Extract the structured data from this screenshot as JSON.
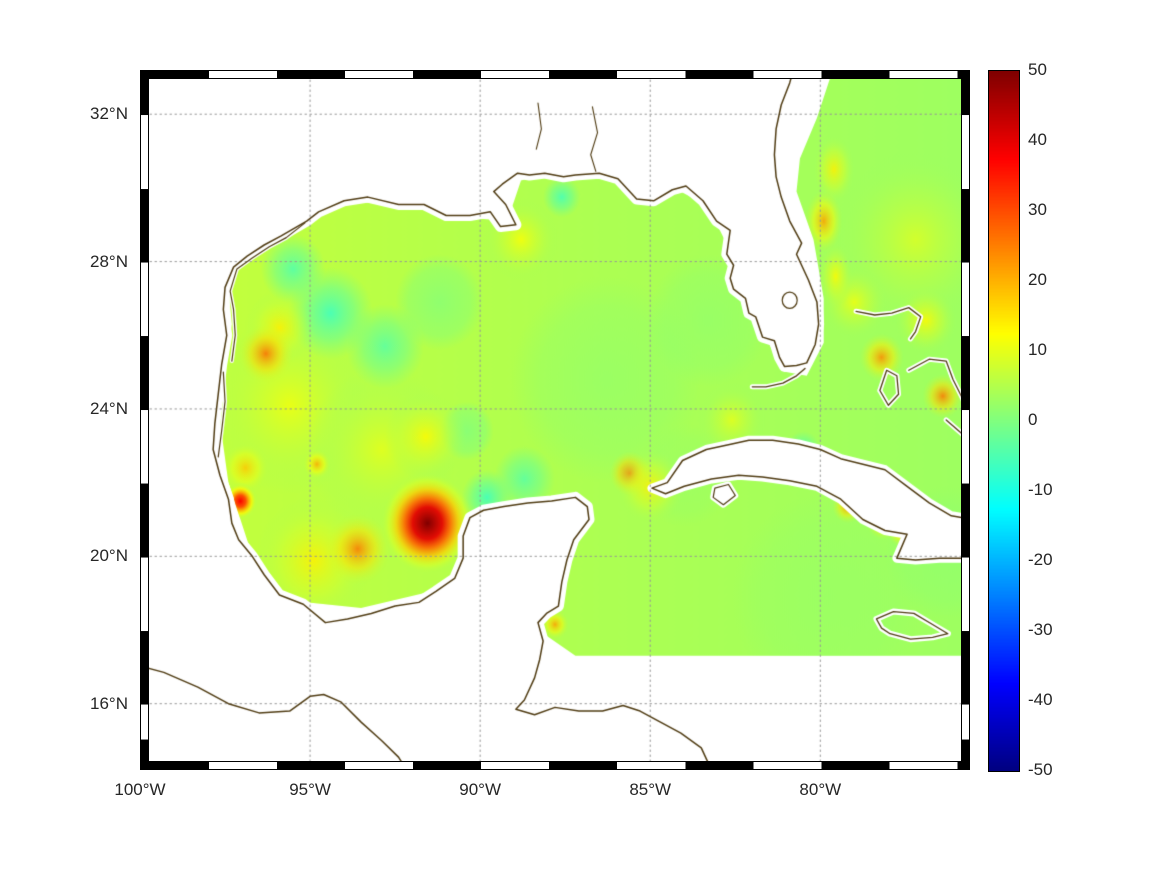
{
  "style": {
    "coastline_color": "#4f3b12",
    "land_color": "#ffffff",
    "grid_color": "#969696",
    "label_color": "#262626",
    "background": "#ffffff"
  },
  "chart_data": {
    "type": "heatmap",
    "region": "Gulf of Mexico, western Caribbean and adjacent North Atlantic",
    "projection": "equirectangular",
    "lon_range": [
      -100,
      -75.6
    ],
    "lat_range": [
      14.2,
      33.2
    ],
    "grid": "dotted",
    "x_ticks": [
      {
        "label": "100°W",
        "lon": -100
      },
      {
        "label": "95°W",
        "lon": -95
      },
      {
        "label": "90°W",
        "lon": -90
      },
      {
        "label": "85°W",
        "lon": -85
      },
      {
        "label": "80°W",
        "lon": -80
      }
    ],
    "y_ticks": [
      {
        "label": "32°N",
        "lat": 32
      },
      {
        "label": "28°N",
        "lat": 28
      },
      {
        "label": "24°N",
        "lat": 24
      },
      {
        "label": "20°N",
        "lat": 20
      },
      {
        "label": "16°N",
        "lat": 16
      }
    ],
    "colorbar": {
      "colormap": "jet",
      "min": -50,
      "max": 50,
      "position": "right",
      "ticks": [
        {
          "label": "50",
          "value": 50
        },
        {
          "label": "40",
          "value": 40
        },
        {
          "label": "30",
          "value": 30
        },
        {
          "label": "20",
          "value": 20
        },
        {
          "label": "10",
          "value": 10
        },
        {
          "label": "0",
          "value": 0
        },
        {
          "label": "-10",
          "value": -10
        },
        {
          "label": "-20",
          "value": -20
        },
        {
          "label": "-30",
          "value": -30
        },
        {
          "label": "-40",
          "value": -40
        },
        {
          "label": "-50",
          "value": -50
        }
      ]
    },
    "background_field": {
      "west_value": 7,
      "mid_value": 4.5,
      "east_value": 3
    },
    "anomalies": [
      {
        "lon": -86.3,
        "lat": 24.8,
        "r": 2.8,
        "v": 1
      },
      {
        "lon": -83.3,
        "lat": 26.4,
        "r": 1.8,
        "v": 1
      },
      {
        "lon": -79.8,
        "lat": 18.9,
        "r": 2.8,
        "v": 2
      },
      {
        "lon": -76.3,
        "lat": 20.1,
        "r": 1.8,
        "v": 1
      },
      {
        "lon": -84.0,
        "lat": 22.2,
        "r": 1.4,
        "v": 2
      },
      {
        "lon": -95.6,
        "lat": 24.1,
        "r": 2.4,
        "v": 11
      },
      {
        "lon": -92.9,
        "lat": 22.9,
        "r": 2.2,
        "v": 10
      },
      {
        "lon": -94.9,
        "lat": 19.9,
        "r": 1.7,
        "v": 14
      },
      {
        "lon": -77.2,
        "lat": 28.6,
        "r": 2.4,
        "v": 9
      },
      {
        "lon": -91.2,
        "lat": 26.9,
        "r": 1.3,
        "v": -2
      },
      {
        "lon": -90.4,
        "lat": 23.4,
        "r": 0.8,
        "v": -3
      },
      {
        "lon": -82.6,
        "lat": 23.7,
        "r": 1.0,
        "v": 10
      },
      {
        "lon": -79.0,
        "lat": 26.9,
        "r": 1.0,
        "v": 11
      },
      {
        "lon": -88.8,
        "lat": 28.6,
        "r": 1.1,
        "v": 12
      },
      {
        "lon": -94.4,
        "lat": 26.6,
        "r": 1.25,
        "v": -7
      },
      {
        "lon": -95.5,
        "lat": 27.8,
        "r": 0.95,
        "v": -5
      },
      {
        "lon": -92.8,
        "lat": 25.7,
        "r": 1.15,
        "v": -4
      },
      {
        "lon": -89.8,
        "lat": 21.6,
        "r": 0.75,
        "v": -7
      },
      {
        "lon": -88.7,
        "lat": 22.1,
        "r": 0.9,
        "v": -4
      },
      {
        "lon": -87.6,
        "lat": 29.75,
        "r": 0.55,
        "v": -6
      },
      {
        "lon": -80.5,
        "lat": 22.9,
        "r": 0.5,
        "v": -6
      },
      {
        "lon": -91.6,
        "lat": 23.25,
        "r": 1.2,
        "v": 13
      },
      {
        "lon": -95.9,
        "lat": 26.2,
        "r": 1.0,
        "v": 14
      },
      {
        "lon": -96.9,
        "lat": 22.4,
        "r": 0.7,
        "v": 18
      },
      {
        "lon": -94.8,
        "lat": 22.5,
        "r": 0.4,
        "v": 21
      },
      {
        "lon": -90.0,
        "lat": 20.05,
        "r": 0.6,
        "v": 15
      },
      {
        "lon": -93.6,
        "lat": 20.2,
        "r": 0.95,
        "v": 26
      },
      {
        "lon": -96.3,
        "lat": 25.5,
        "r": 0.8,
        "v": 27
      },
      {
        "lon": -85.6,
        "lat": 22.25,
        "r": 0.6,
        "v": 28
      },
      {
        "lon": -85.0,
        "lat": 21.9,
        "r": 1.0,
        "v": 14
      },
      {
        "lon": -87.8,
        "lat": 18.15,
        "r": 0.4,
        "v": 22
      },
      {
        "lon": -79.9,
        "lat": 29.1,
        "r": 0.55,
        "ry": 0.85,
        "v": 22
      },
      {
        "lon": -79.6,
        "lat": 30.5,
        "r": 0.6,
        "ry": 0.9,
        "v": 14
      },
      {
        "lon": -79.55,
        "lat": 27.6,
        "r": 0.5,
        "ry": 0.9,
        "v": 13
      },
      {
        "lon": -78.2,
        "lat": 25.4,
        "r": 0.65,
        "v": 24
      },
      {
        "lon": -76.4,
        "lat": 24.35,
        "r": 0.6,
        "v": 26
      },
      {
        "lon": -76.9,
        "lat": 26.4,
        "r": 0.9,
        "v": 13
      },
      {
        "lon": -79.2,
        "lat": 21.35,
        "r": 0.45,
        "v": 24
      },
      {
        "lon": -78.15,
        "lat": 20.95,
        "r": 0.5,
        "v": 21
      },
      {
        "lon": -77.6,
        "lat": 20.7,
        "r": 0.45,
        "v": 22
      },
      {
        "lon": -97.05,
        "lat": 21.5,
        "r": 0.5,
        "v": 38
      },
      {
        "lon": -91.55,
        "lat": 20.9,
        "r": 1.35,
        "v": 50
      }
    ]
  },
  "geometry": {
    "field_polygon": [
      [
        -97.5,
        28.3
      ],
      [
        -96.0,
        28.9
      ],
      [
        -94.0,
        29.6
      ],
      [
        -92.0,
        29.6
      ],
      [
        -90.5,
        29.2
      ],
      [
        -89.2,
        29.1
      ],
      [
        -88.8,
        30.2
      ],
      [
        -88.0,
        30.4
      ],
      [
        -86.3,
        30.4
      ],
      [
        -85.3,
        29.8
      ],
      [
        -84.3,
        30.0
      ],
      [
        -83.3,
        29.5
      ],
      [
        -82.5,
        28.0
      ],
      [
        -81.8,
        26.2
      ],
      [
        -81.0,
        25.0
      ],
      [
        -80.4,
        24.9
      ],
      [
        -79.9,
        25.8
      ],
      [
        -79.9,
        27.0
      ],
      [
        -80.2,
        28.6
      ],
      [
        -80.7,
        29.9
      ],
      [
        -80.6,
        30.8
      ],
      [
        -80.1,
        31.9
      ],
      [
        -79.6,
        33.3
      ],
      [
        -75.4,
        33.3
      ],
      [
        -75.4,
        17.3
      ],
      [
        -87.2,
        17.3
      ],
      [
        -88.6,
        18.2
      ],
      [
        -91.2,
        19.1
      ],
      [
        -93.5,
        18.6
      ],
      [
        -95.6,
        18.8
      ],
      [
        -96.8,
        20.3
      ],
      [
        -97.4,
        22.0
      ],
      [
        -97.7,
        24.0
      ],
      [
        -97.3,
        26.3
      ]
    ],
    "mainland": [
      [
        -80.75,
        33.35
      ],
      [
        -80.9,
        32.85
      ],
      [
        -81.15,
        32.25
      ],
      [
        -81.3,
        31.6
      ],
      [
        -81.35,
        30.9
      ],
      [
        -81.3,
        30.3
      ],
      [
        -81.15,
        29.75
      ],
      [
        -80.9,
        29.1
      ],
      [
        -80.55,
        28.5
      ],
      [
        -80.7,
        28.2
      ],
      [
        -80.35,
        27.5
      ],
      [
        -80.1,
        26.9
      ],
      [
        -80.05,
        26.3
      ],
      [
        -80.15,
        25.75
      ],
      [
        -80.4,
        25.25
      ],
      [
        -80.7,
        25.18
      ],
      [
        -81.05,
        25.15
      ],
      [
        -81.2,
        25.4
      ],
      [
        -81.35,
        25.85
      ],
      [
        -81.7,
        25.95
      ],
      [
        -81.9,
        26.5
      ],
      [
        -82.1,
        26.6
      ],
      [
        -82.2,
        27.0
      ],
      [
        -82.55,
        27.25
      ],
      [
        -82.65,
        27.55
      ],
      [
        -82.55,
        27.9
      ],
      [
        -82.75,
        28.2
      ],
      [
        -82.65,
        28.85
      ],
      [
        -83.05,
        29.1
      ],
      [
        -83.45,
        29.65
      ],
      [
        -83.95,
        30.05
      ],
      [
        -84.35,
        29.95
      ],
      [
        -84.9,
        29.65
      ],
      [
        -85.4,
        29.7
      ],
      [
        -85.95,
        30.25
      ],
      [
        -86.5,
        30.4
      ],
      [
        -87.2,
        30.35
      ],
      [
        -87.55,
        30.3
      ],
      [
        -88.1,
        30.4
      ],
      [
        -88.55,
        30.35
      ],
      [
        -88.9,
        30.4
      ],
      [
        -89.35,
        30.1
      ],
      [
        -89.6,
        29.9
      ],
      [
        -89.25,
        29.55
      ],
      [
        -88.95,
        29.0
      ],
      [
        -89.4,
        28.95
      ],
      [
        -89.7,
        29.35
      ],
      [
        -90.3,
        29.25
      ],
      [
        -91.0,
        29.25
      ],
      [
        -91.65,
        29.55
      ],
      [
        -92.4,
        29.55
      ],
      [
        -93.3,
        29.75
      ],
      [
        -94.0,
        29.65
      ],
      [
        -94.75,
        29.35
      ],
      [
        -95.1,
        29.1
      ],
      [
        -95.85,
        28.7
      ],
      [
        -96.35,
        28.45
      ],
      [
        -96.85,
        28.15
      ],
      [
        -97.25,
        27.85
      ],
      [
        -97.5,
        27.3
      ],
      [
        -97.55,
        26.7
      ],
      [
        -97.45,
        26.0
      ],
      [
        -97.6,
        25.2
      ],
      [
        -97.7,
        24.4
      ],
      [
        -97.8,
        23.6
      ],
      [
        -97.85,
        22.9
      ],
      [
        -97.65,
        22.2
      ],
      [
        -97.4,
        21.55
      ],
      [
        -97.3,
        20.9
      ],
      [
        -97.1,
        20.45
      ],
      [
        -96.7,
        20.0
      ],
      [
        -96.35,
        19.5
      ],
      [
        -95.9,
        18.95
      ],
      [
        -95.2,
        18.7
      ],
      [
        -94.55,
        18.2
      ],
      [
        -93.9,
        18.3
      ],
      [
        -93.2,
        18.45
      ],
      [
        -92.5,
        18.65
      ],
      [
        -91.8,
        18.75
      ],
      [
        -91.3,
        19.05
      ],
      [
        -90.75,
        19.4
      ],
      [
        -90.5,
        19.95
      ],
      [
        -90.5,
        20.55
      ],
      [
        -90.3,
        21.05
      ],
      [
        -89.9,
        21.25
      ],
      [
        -89.3,
        21.35
      ],
      [
        -88.6,
        21.45
      ],
      [
        -87.9,
        21.5
      ],
      [
        -87.2,
        21.6
      ],
      [
        -86.85,
        21.35
      ],
      [
        -86.8,
        21.0
      ],
      [
        -87.25,
        20.45
      ],
      [
        -87.45,
        19.9
      ],
      [
        -87.6,
        19.3
      ],
      [
        -87.7,
        18.65
      ],
      [
        -88.05,
        18.45
      ],
      [
        -88.3,
        18.2
      ],
      [
        -88.15,
        17.7
      ],
      [
        -88.25,
        17.2
      ],
      [
        -88.4,
        16.7
      ],
      [
        -88.7,
        16.1
      ],
      [
        -88.95,
        15.85
      ],
      [
        -88.4,
        15.7
      ],
      [
        -87.8,
        15.9
      ],
      [
        -87.1,
        15.8
      ],
      [
        -86.4,
        15.8
      ],
      [
        -85.8,
        15.95
      ],
      [
        -85.3,
        15.8
      ],
      [
        -84.7,
        15.5
      ],
      [
        -84.1,
        15.2
      ],
      [
        -83.5,
        14.8
      ],
      [
        -83.25,
        14.3
      ],
      [
        -83.3,
        13.9
      ],
      [
        -100.9,
        13.8
      ],
      [
        -100.9,
        33.6
      ]
    ],
    "pacific_coast": [
      [
        -100.3,
        17.1
      ],
      [
        -99.3,
        16.85
      ],
      [
        -98.3,
        16.45
      ],
      [
        -97.4,
        16.0
      ],
      [
        -96.5,
        15.75
      ],
      [
        -95.6,
        15.8
      ],
      [
        -95.0,
        16.2
      ],
      [
        -94.6,
        16.25
      ],
      [
        -94.1,
        16.05
      ],
      [
        -93.5,
        15.5
      ],
      [
        -92.9,
        15.0
      ],
      [
        -92.4,
        14.55
      ],
      [
        -92.1,
        14.1
      ]
    ],
    "cuba": [
      [
        -84.95,
        21.85
      ],
      [
        -84.5,
        22.0
      ],
      [
        -84.05,
        22.6
      ],
      [
        -83.35,
        22.9
      ],
      [
        -82.6,
        23.05
      ],
      [
        -82.1,
        23.15
      ],
      [
        -81.4,
        23.15
      ],
      [
        -80.65,
        23.05
      ],
      [
        -80.0,
        22.9
      ],
      [
        -79.4,
        22.65
      ],
      [
        -78.75,
        22.5
      ],
      [
        -78.1,
        22.35
      ],
      [
        -77.45,
        21.9
      ],
      [
        -76.8,
        21.45
      ],
      [
        -76.15,
        21.1
      ],
      [
        -75.5,
        21.0
      ],
      [
        -75.4,
        20.3
      ],
      [
        -75.8,
        19.95
      ],
      [
        -76.5,
        19.95
      ],
      [
        -77.2,
        19.9
      ],
      [
        -77.75,
        19.95
      ],
      [
        -77.45,
        20.6
      ],
      [
        -78.1,
        20.7
      ],
      [
        -78.75,
        21.0
      ],
      [
        -79.4,
        21.55
      ],
      [
        -80.1,
        21.9
      ],
      [
        -80.9,
        22.05
      ],
      [
        -81.7,
        22.15
      ],
      [
        -82.4,
        22.2
      ],
      [
        -83.2,
        22.1
      ],
      [
        -84.0,
        21.9
      ],
      [
        -84.55,
        21.7
      ]
    ],
    "isla_juventud": [
      [
        -83.1,
        21.85
      ],
      [
        -82.7,
        21.95
      ],
      [
        -82.5,
        21.65
      ],
      [
        -82.85,
        21.4
      ],
      [
        -83.15,
        21.6
      ]
    ],
    "jamaica": [
      [
        -78.35,
        18.3
      ],
      [
        -77.85,
        18.5
      ],
      [
        -77.25,
        18.45
      ],
      [
        -76.7,
        18.15
      ],
      [
        -76.25,
        17.9
      ],
      [
        -76.7,
        17.8
      ],
      [
        -77.35,
        17.75
      ],
      [
        -77.95,
        17.9
      ],
      [
        -78.2,
        18.05
      ]
    ],
    "florida_keys": [
      [
        -80.45,
        25.1
      ],
      [
        -80.7,
        24.9
      ],
      [
        -81.1,
        24.7
      ],
      [
        -81.6,
        24.6
      ],
      [
        -82.0,
        24.6
      ]
    ],
    "bahamas": [
      [
        [
          -78.95,
          26.65
        ],
        [
          -78.4,
          26.55
        ],
        [
          -77.9,
          26.6
        ],
        [
          -77.4,
          26.75
        ],
        [
          -77.05,
          26.5
        ],
        [
          -77.2,
          26.1
        ],
        [
          -77.35,
          25.9
        ]
      ],
      [
        [
          -78.25,
          24.5
        ],
        [
          -78.05,
          25.05
        ],
        [
          -77.75,
          24.9
        ],
        [
          -77.7,
          24.4
        ],
        [
          -78.0,
          24.1
        ],
        [
          -78.25,
          24.5
        ]
      ],
      [
        [
          -77.4,
          25.05
        ],
        [
          -76.8,
          25.35
        ],
        [
          -76.3,
          25.3
        ],
        [
          -76.1,
          24.8
        ],
        [
          -75.8,
          24.25
        ],
        [
          -75.6,
          23.9
        ]
      ],
      [
        [
          -76.3,
          23.7
        ],
        [
          -75.8,
          23.3
        ],
        [
          -75.35,
          22.95
        ]
      ]
    ],
    "rivers": [
      [
        [
          -86.7,
          32.2
        ],
        [
          -86.55,
          31.5
        ],
        [
          -86.75,
          30.9
        ],
        [
          -86.6,
          30.45
        ]
      ],
      [
        [
          -88.3,
          32.3
        ],
        [
          -88.2,
          31.6
        ],
        [
          -88.35,
          31.05
        ]
      ]
    ],
    "barrier_lagoons": [
      [
        [
          -97.3,
          25.3
        ],
        [
          -97.2,
          26.0
        ],
        [
          -97.25,
          26.7
        ],
        [
          -97.35,
          27.2
        ],
        [
          -97.15,
          27.8
        ],
        [
          -96.7,
          28.1
        ],
        [
          -96.2,
          28.4
        ],
        [
          -95.7,
          28.65
        ],
        [
          -95.15,
          29.05
        ]
      ],
      [
        [
          -97.55,
          25.0
        ],
        [
          -97.5,
          24.2
        ],
        [
          -97.6,
          23.4
        ],
        [
          -97.7,
          22.7
        ]
      ]
    ],
    "lake_okeechobee": {
      "lon": -80.9,
      "lat": 26.95,
      "r": 0.22
    }
  }
}
